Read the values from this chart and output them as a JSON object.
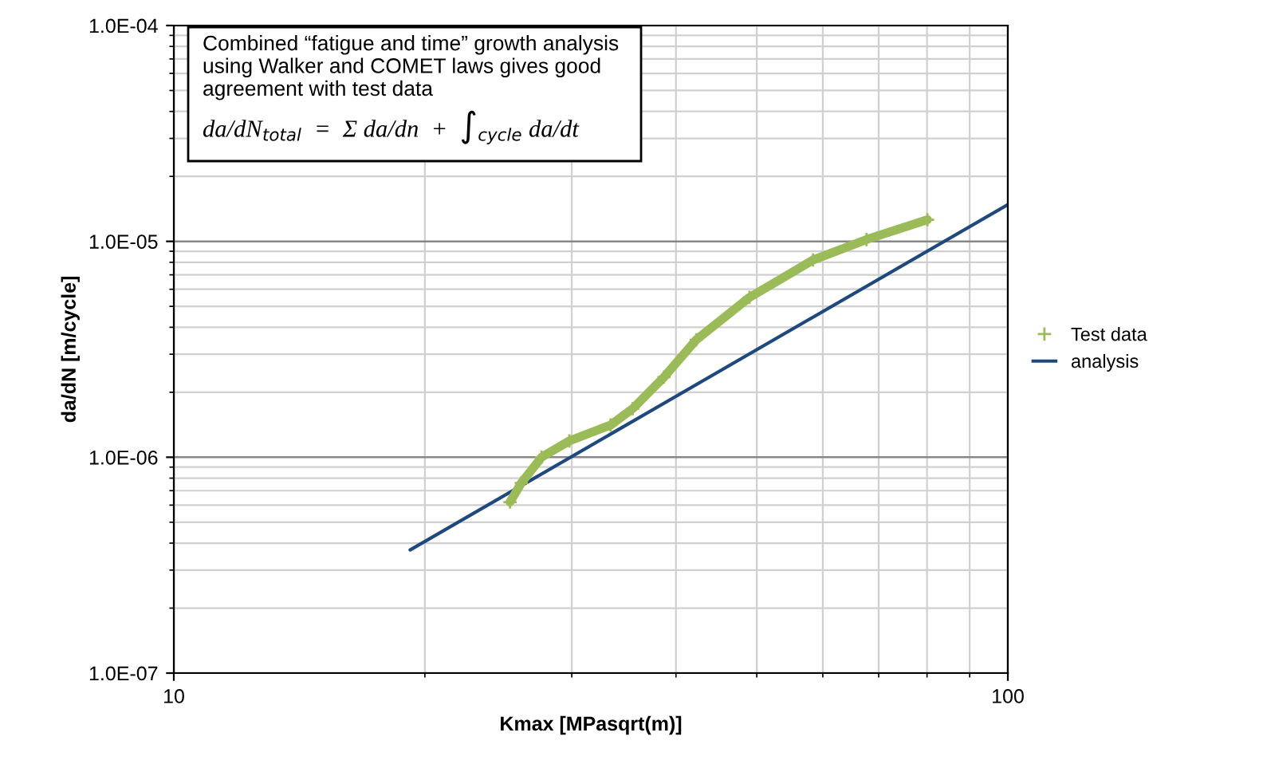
{
  "chart_data": {
    "type": "line",
    "xlabel": "Kmax [MPasqrt(m)]",
    "ylabel": "da/dN [m/cycle]",
    "log": "xy",
    "xlim": [
      10,
      100
    ],
    "ylim": [
      1e-07,
      0.0001
    ],
    "xticks": [
      10,
      100
    ],
    "yticks": [
      {
        "value": 1e-07,
        "label": "1.0E-07"
      },
      {
        "value": 1e-06,
        "label": "1.0E-06"
      },
      {
        "value": 1e-05,
        "label": "1.0E-05"
      },
      {
        "value": 0.0001,
        "label": "1.0E-04"
      }
    ],
    "grid": true,
    "legend": "right",
    "annotations": [
      "Combined “fatigue and time” growth analysis using Walker and COMET laws gives good agreement with test data",
      "da/dN$_{total}$  =  Σ da/dn  +  ∫$_{cycle}$ da/dt"
    ],
    "series": [
      {
        "name": "Test data",
        "color": "#9bbb59",
        "marker": "cross",
        "x": [
          25.3,
          26.1,
          27.6,
          29.8,
          33.4,
          35.5,
          38.7,
          42.3,
          49.0,
          58.4,
          67.7,
          80.1
        ],
        "values": [
          6.2e-07,
          7.6e-07,
          1e-06,
          1.19e-06,
          1.41e-06,
          1.68e-06,
          2.35e-06,
          3.5e-06,
          5.5e-06,
          8.2e-06,
          1.02e-05,
          1.26e-05
        ]
      },
      {
        "name": "analysis",
        "color": "#1f497d",
        "marker": "none",
        "x": [
          19.2,
          100
        ],
        "values": [
          3.72e-07,
          1.48e-05
        ]
      }
    ]
  }
}
